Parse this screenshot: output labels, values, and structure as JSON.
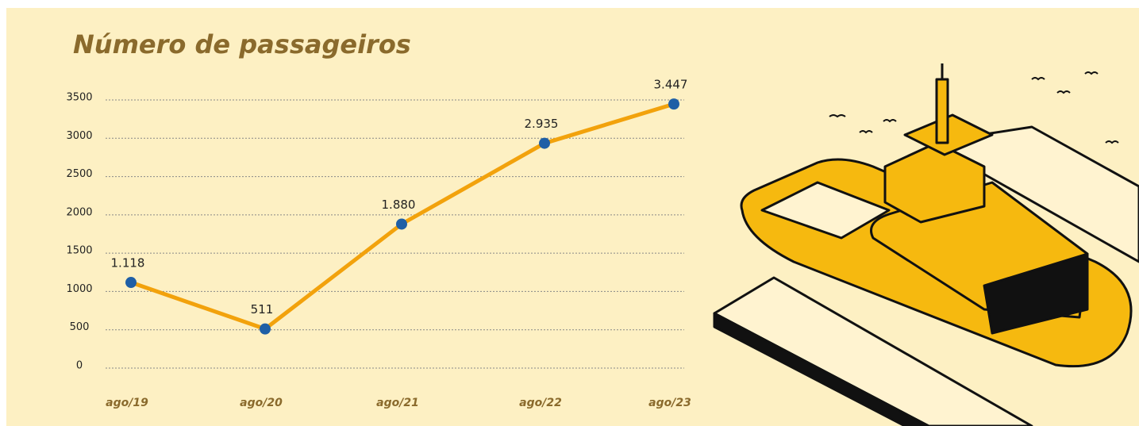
{
  "chart_data": {
    "type": "line",
    "title": "Número de passageiros",
    "categories": [
      "ago/19",
      "ago/20",
      "ago/21",
      "ago/22",
      "ago/23"
    ],
    "values": [
      1118,
      511,
      1880,
      2935,
      3447
    ],
    "value_labels": [
      "1.118",
      "511",
      "1.880",
      "2.935",
      "3.447"
    ],
    "color": "#f2a20c",
    "marker_color": "#1f5fa6",
    "ylim": [
      0,
      3500
    ],
    "yticks": [
      0,
      500,
      1000,
      1500,
      2000,
      2500,
      3000,
      3500
    ],
    "grid": true
  }
}
